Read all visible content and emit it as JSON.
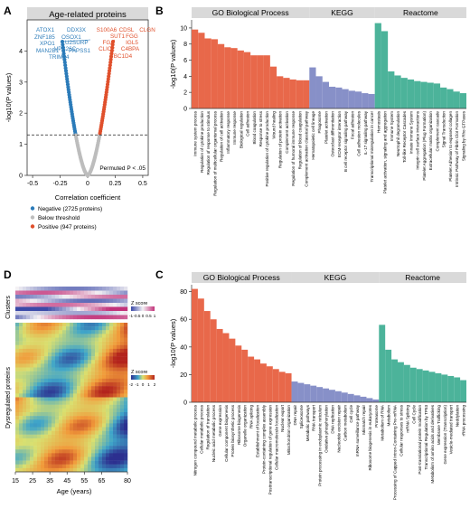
{
  "chart_data": [
    {
      "panel": "A",
      "type": "scatter",
      "title": "Age-related proteins",
      "xlabel": "Correlation coefficient",
      "ylabel": "-log10(P values)",
      "xlim": [
        -0.55,
        0.55
      ],
      "ylim": [
        0,
        5
      ],
      "x_ticks": [
        "-0.5",
        "-0.25",
        "0",
        "0.25",
        "0.5"
      ],
      "y_ticks": [
        "0",
        "1",
        "2",
        "3",
        "4"
      ],
      "threshold_label": "Permuted P < .05",
      "threshold_y": 1.3,
      "legend": [
        {
          "label": "Negative (2725 proteins)",
          "color": "#2b7bb9"
        },
        {
          "label": "Below threshold",
          "color": "#bdbdbd"
        },
        {
          "label": "Positive (947 proteins)",
          "color": "#e0502c"
        }
      ],
      "negative_labels": [
        "ATOX1",
        "DDX3X",
        "ZNF185",
        "OSOX1",
        "U2SURP",
        "XPO1",
        "VPS26C",
        "MAN2B1",
        "PAPSS1",
        "TRIM24"
      ],
      "positive_labels": [
        "S100A6",
        "CDSL",
        "CLGN",
        "SUT1",
        "FGG",
        "FGA",
        "IGL5",
        "CLIC2",
        "C4BPA",
        "TBC1D4"
      ]
    },
    {
      "panel": "B",
      "type": "bar",
      "ylabel": "-log10(P values)",
      "ylim": [
        0,
        11
      ],
      "y_ticks": [
        "0",
        "2",
        "4",
        "6",
        "8",
        "10"
      ],
      "groups": [
        {
          "name": "GO Biological Process",
          "color": "#e8684a",
          "categories": [
            "Immune system process",
            "Regulation of cytokine production",
            "Regulation of response to stimulus",
            "Regulation of multicellular organismal process",
            "Regulation of cell activation",
            "Inflammatory response",
            "Immune response",
            "Biological regulation",
            "Cell adhesion",
            "Blood coagulation",
            "Response to stress",
            "Positive regulation of cytokine production",
            "Wound healing",
            "Regulation of protein activation",
            "Complement activation",
            "Regulation of humoral immune response",
            "Regulation of blood coagulation",
            "Complement activation classical pathway"
          ],
          "values": [
            9.8,
            9.4,
            8.7,
            8.6,
            8.0,
            7.6,
            7.5,
            7.2,
            7.0,
            6.6,
            6.6,
            6.6,
            5.2,
            4.0,
            3.8,
            3.6,
            3.5,
            3.5
          ]
        },
        {
          "name": "KEGG",
          "color": "#8790c8",
          "categories": [
            "Hematopoietic cell lineage",
            "Phagosome",
            "Platelet activation",
            "Osteoclast differentiation",
            "ECM-receptor interaction",
            "B cell receptor signaling pathway",
            "Focal adhesion",
            "Cell adhesion molecules",
            "IL-17 signaling pathway",
            "Transcriptional misregulation in cancer"
          ],
          "values": [
            5.1,
            4.0,
            3.3,
            2.7,
            2.6,
            2.4,
            2.2,
            2.1,
            1.9,
            1.8
          ]
        },
        {
          "name": "Reactome",
          "color": "#4cb39a",
          "categories": [
            "Hemostasis",
            "Platelet activation, signaling and aggregation",
            "Immune System",
            "Neutrophil degranulation",
            "Toll-like Receptor Cascades",
            "Innate Immune System",
            "Integrin cell surface interactions",
            "Platelet Aggregation (Plug Formation)",
            "Extracellular matrix organization",
            "Complement cascade",
            "Signal Transduction",
            "Platelet Adhesion to exposed collagen",
            "Intrinsic Pathway of Fibrin Clot Formation",
            "Signaling by Rho GTPases"
          ],
          "values": [
            10.6,
            9.6,
            4.6,
            4.1,
            3.8,
            3.6,
            3.4,
            3.3,
            3.2,
            3.1,
            2.6,
            2.4,
            2.1,
            1.9
          ]
        }
      ]
    },
    {
      "panel": "C",
      "type": "bar",
      "ylabel": "-log10(P values)",
      "ylim": [
        0,
        85
      ],
      "y_ticks": [
        "0",
        "20",
        "40",
        "60",
        "80"
      ],
      "groups": [
        {
          "name": "GO Biological Process",
          "color": "#e8684a",
          "categories": [
            "Nitrogen compound metabolic process",
            "Cellular metabolic process",
            "Regulation of translation",
            "Nucleic acid metabolic process",
            "Gene expression",
            "Cellular component biogenesis",
            "Protein biosynthetic process",
            "Ribosome biogenesis",
            "Organelle organization",
            "RNA splicing",
            "Establishment of localization",
            "Protein-containing complex assembly",
            "Posttranscriptional regulation of gene expression",
            "Cellular macromolecule localization",
            "Nuclear export",
            "Mitochondrion organization"
          ],
          "values": [
            82,
            75,
            66,
            60,
            53,
            50,
            46,
            41,
            38,
            33,
            31,
            28,
            26,
            24,
            22,
            21
          ]
        },
        {
          "name": "KEGG",
          "color": "#8790c8",
          "categories": [
            "DNA repair",
            "Spliceosome",
            "Metabolic pathways",
            "RNA transport",
            "Protein processing in endoplasmic reticulum",
            "Oxidative phosphorylation",
            "DNA replication",
            "Nucleotide excision repair",
            "Carbon metabolism",
            "Cell cycle",
            "mRNA surveillance pathway",
            "Mismatch repair",
            "Ribosome biogenesis in eukaryotes",
            "Proteasome"
          ],
          "values": [
            15,
            14,
            13,
            12,
            11,
            10,
            9,
            8,
            7,
            6,
            5,
            4,
            3,
            2
          ]
        },
        {
          "name": "Reactome",
          "color": "#4cb39a",
          "categories": [
            "Metabolism of RNA",
            "Metabolism",
            "Processing of Capped Intron-Containing Pre-mRNA",
            "Cellular responses to stress",
            "mRNA Splicing",
            "Cell Cycle",
            "Post-translational protein modification",
            "Transcriptional Regulation by TP53",
            "Metabolism of amino acids and derivatives",
            "Membrane Trafficking",
            "Gene expression (Transcription)",
            "Vesicle-mediated transport",
            "Neddylation",
            "rRNA processing"
          ],
          "values": [
            56,
            38,
            31,
            29,
            27,
            25,
            24,
            23,
            22,
            21,
            20,
            19,
            18,
            16
          ]
        }
      ]
    },
    {
      "panel": "D",
      "type": "heatmap",
      "xlabel": "Age (years)",
      "x_ticks": [
        "15",
        "25",
        "35",
        "45",
        "55",
        "65",
        "80"
      ],
      "clusters_label": "Clusters",
      "dysregulated_label": "Dysregulated proteins",
      "colorbar_clusters": {
        "title": "Z score",
        "ticks": [
          "-1",
          "-0.5",
          "0",
          "0.5",
          "1"
        ]
      },
      "colorbar_proteins": {
        "title": "Z score",
        "ticks": [
          "-2",
          "-1",
          "0",
          "1",
          "2"
        ]
      }
    }
  ],
  "panel_letters": [
    "A",
    "B",
    "C",
    "D"
  ]
}
